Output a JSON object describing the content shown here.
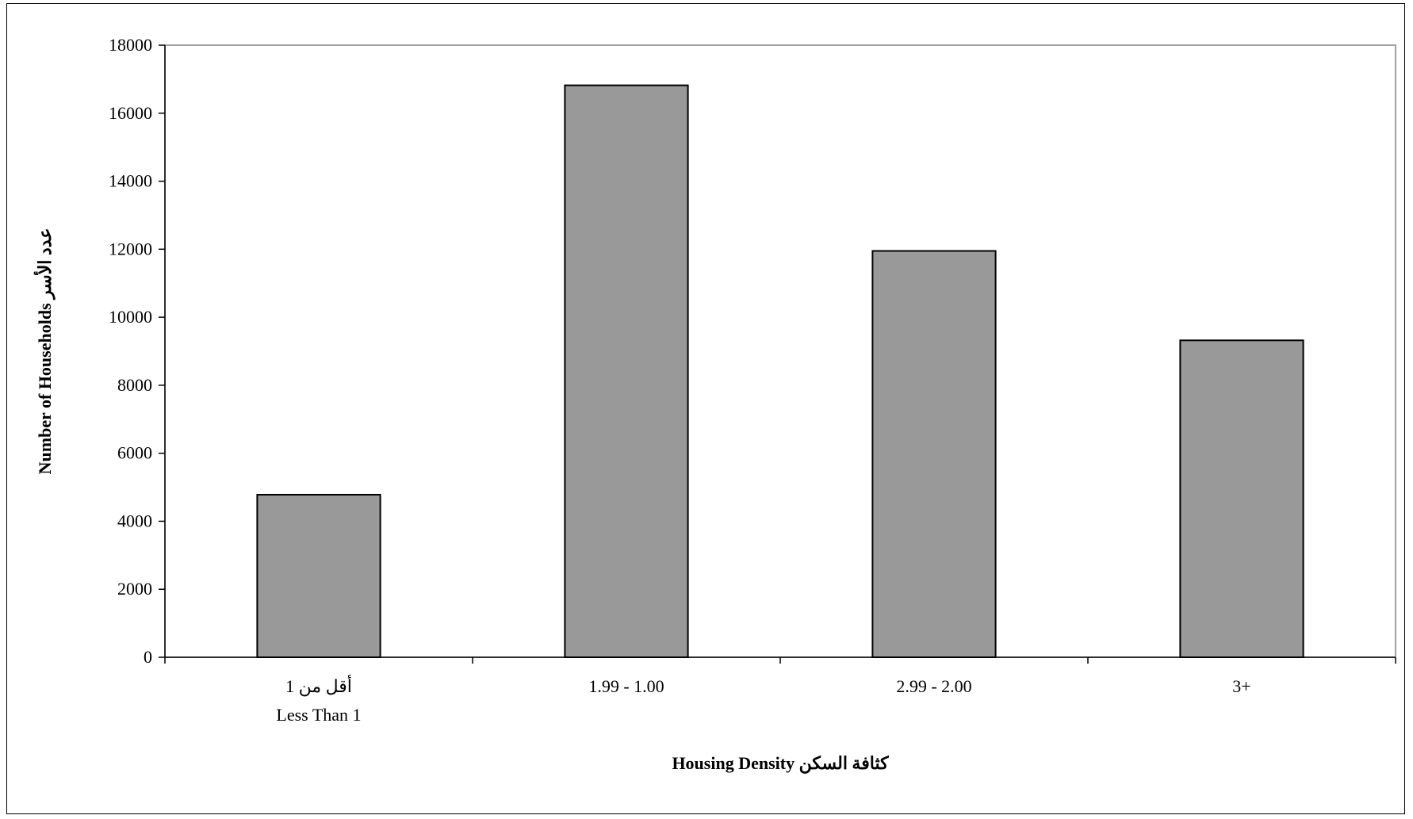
{
  "chart_data": {
    "type": "bar",
    "categories": [
      {
        "line1": "أقل من 1",
        "line2": "Less Than 1"
      },
      {
        "line1": "1.99 - 1.00",
        "line2": ""
      },
      {
        "line1": "2.99 - 2.00",
        "line2": ""
      },
      {
        "line1": "3+",
        "line2": ""
      }
    ],
    "values": [
      4780,
      16820,
      11950,
      9320
    ],
    "title": "",
    "xlabel": "Housing Density   كثافة السكن",
    "ylabel": "Number of Households   عدد الأسر",
    "ylim": [
      0,
      18000
    ],
    "yticks": [
      0,
      2000,
      4000,
      6000,
      8000,
      10000,
      12000,
      14000,
      16000,
      18000
    ],
    "grid": false,
    "legend": "none",
    "colors": {
      "bar_fill": "#999999",
      "bar_stroke": "#000000",
      "plot_border": "#808080"
    }
  }
}
